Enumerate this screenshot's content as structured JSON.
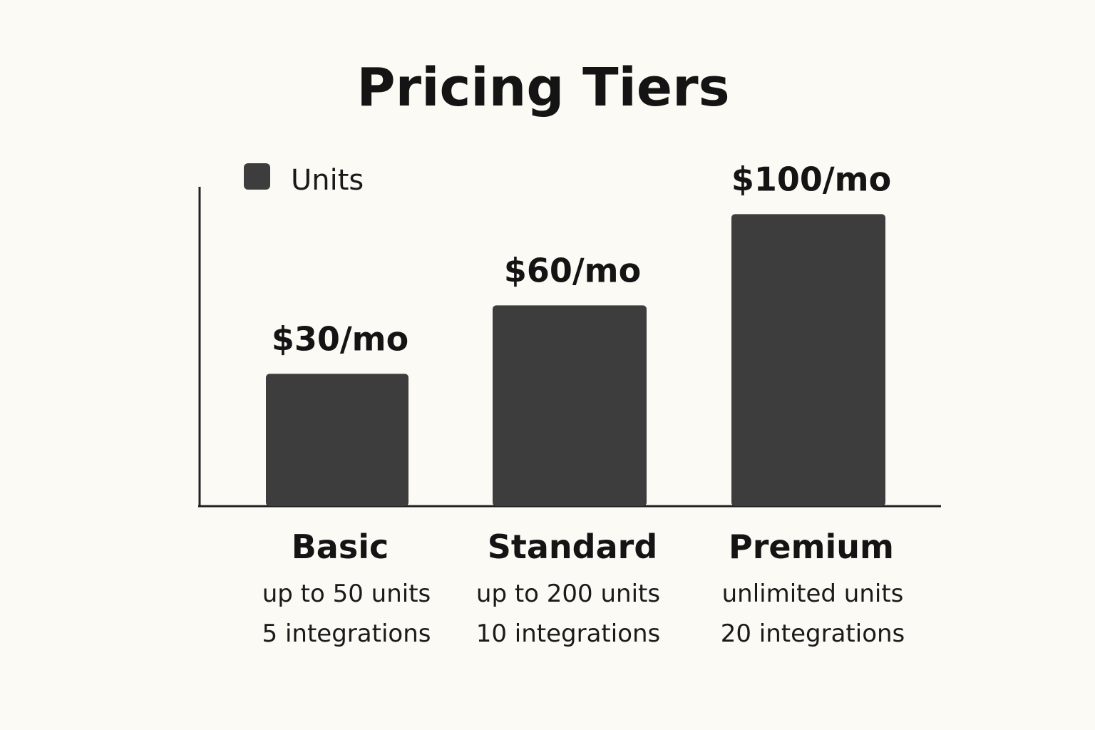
{
  "chart_data": {
    "type": "bar",
    "title": "Pricing Tiers",
    "xlabel": "",
    "ylabel": "",
    "ylim": [
      -28,
      112
    ],
    "grid": false,
    "legend": {
      "position": "top-left",
      "entries": [
        "Units"
      ]
    },
    "categories": [
      "Basic",
      "Standard",
      "Premium"
    ],
    "series": [
      {
        "name": "Units",
        "values": [
          30,
          60,
          100
        ],
        "color": "#3d3d3d"
      }
    ],
    "data_labels": [
      "$30/mo",
      "$60/mo",
      "$100/mo"
    ],
    "category_details": [
      [
        "up to 50 units",
        "5 integrations"
      ],
      [
        "up to 200 units",
        "10 integrations"
      ],
      [
        "unlimited units",
        "20 integrations"
      ]
    ]
  },
  "colors": {
    "background": "#fbfaf5",
    "bar": "#3d3d3d",
    "axis": "#222222",
    "text": "#141414"
  }
}
